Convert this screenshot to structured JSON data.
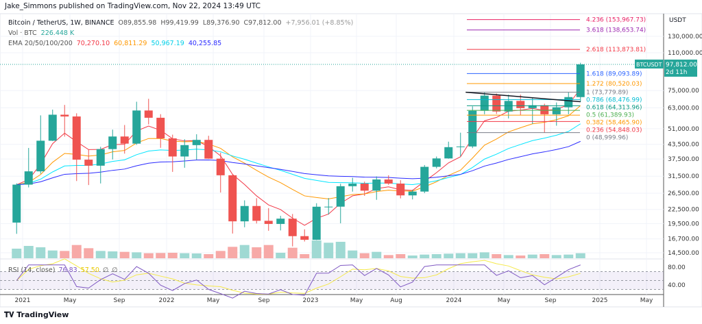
{
  "published": "Jake_Simmons published on TradingView.com, Nov 22, 2024 13:49 UTC",
  "legend": {
    "symbol": "Bitcoin / TetherUS, 1W, BINANCE",
    "open": "O89,855.98",
    "high": "H99,419.99",
    "low": "L89,376.90",
    "close": "C97,812.00",
    "change": "+7,956.01 (+8.85%)",
    "vol_label": "Vol · BTC",
    "vol_value": "226.448 K",
    "ema_label": "EMA 20/50/100/200",
    "ema_values": [
      "70,270.10",
      "60,811.29",
      "50,967.19",
      "40,255.85"
    ],
    "ema_colors": [
      "#f23645",
      "#ff9800",
      "#00e5ff",
      "#2a2aff"
    ]
  },
  "rsi": {
    "label": "RSI (14, close)",
    "value": "76.83",
    "ma_value": "57.50",
    "extra1": "∅",
    "extra2": "∅",
    "line_color": "#7e57c2",
    "ma_color": "#f5e94a"
  },
  "axis": {
    "currency": "USDT",
    "price_ticks": [
      "130,000.00",
      "110,000.00",
      "75,000.00",
      "63,000.00",
      "51,000.00",
      "43,500.00",
      "37,500.00",
      "31,500.00",
      "26,500.00",
      "22,500.00",
      "19,500.00",
      "16,700.00",
      "14,500.00"
    ],
    "rsi_ticks": [
      "80.00",
      "40.00"
    ],
    "time_ticks": [
      "2021",
      "May",
      "Sep",
      "2022",
      "May",
      "Sep",
      "2023",
      "May",
      "Aug",
      "2024",
      "May",
      "Sep",
      "2025",
      "May"
    ]
  },
  "price_tag": {
    "symbol": "BTCUSDT",
    "price": "97,812.00",
    "countdown": "2d 11h",
    "color": "#26a69a"
  },
  "fib_levels": [
    {
      "label": "4.236 (153,967.73)",
      "price": 153967.73,
      "color": "#e91e63"
    },
    {
      "label": "3.618 (138,653.74)",
      "price": 138653.74,
      "color": "#9c27b0"
    },
    {
      "label": "2.618 (113,873.81)",
      "price": 113873.81,
      "color": "#f23645"
    },
    {
      "label": "1.618 (89,093.89)",
      "price": 89093.89,
      "color": "#2962ff"
    },
    {
      "label": "1.272 (80,520.03)",
      "price": 80520.03,
      "color": "#ff9800"
    },
    {
      "label": "1 (73,779.89)",
      "price": 73779.89,
      "color": "#787b86"
    },
    {
      "label": "0.786 (68,476.99)",
      "price": 68476.99,
      "color": "#00bcd4"
    },
    {
      "label": "0.618 (64,313.96)",
      "price": 64313.96,
      "color": "#089981"
    },
    {
      "label": "0.5 (61,389.93)",
      "price": 61389.93,
      "color": "#4caf50"
    },
    {
      "label": "0.382 (58,465.90)",
      "price": 58465.9,
      "color": "#ff9800"
    },
    {
      "label": "0.236 (54,848.03)",
      "price": 54848.03,
      "color": "#f23645"
    },
    {
      "label": "0 (48,999.96)",
      "price": 48999.96,
      "color": "#787b86"
    }
  ],
  "footer": {
    "brand": "TradingView"
  },
  "chart_data": {
    "type": "candlestick",
    "title": "Bitcoin / TetherUS, 1W, BINANCE",
    "y_scale": "log",
    "ylim": [
      13500,
      160000
    ],
    "xlim": [
      "2020-11",
      "2025-06"
    ],
    "grid": true,
    "legend": "top-left",
    "up_color": "#26a69a",
    "down_color": "#ef5350",
    "months": [
      "2020-12",
      "2021-01",
      "2021-02",
      "2021-03",
      "2021-04",
      "2021-05",
      "2021-06",
      "2021-07",
      "2021-08",
      "2021-09",
      "2021-10",
      "2021-11",
      "2021-12",
      "2022-01",
      "2022-02",
      "2022-03",
      "2022-04",
      "2022-05",
      "2022-06",
      "2022-07",
      "2022-08",
      "2022-09",
      "2022-10",
      "2022-11",
      "2022-12",
      "2023-01",
      "2023-02",
      "2023-03",
      "2023-04",
      "2023-05",
      "2023-06",
      "2023-07",
      "2023-08",
      "2023-09",
      "2023-10",
      "2023-11",
      "2023-12",
      "2024-01",
      "2024-02",
      "2024-03",
      "2024-04",
      "2024-05",
      "2024-06",
      "2024-07",
      "2024-08",
      "2024-09",
      "2024-10",
      "2024-11"
    ],
    "ohlc": [
      [
        19695,
        29300,
        17572,
        28923
      ],
      [
        28923,
        41950,
        28130,
        33092
      ],
      [
        33092,
        58352,
        32296,
        45135
      ],
      [
        45134,
        61844,
        45000,
        58740
      ],
      [
        58739,
        64854,
        47044,
        57694
      ],
      [
        57697,
        59592,
        30000,
        37253
      ],
      [
        37254,
        41330,
        28805,
        35045
      ],
      [
        35046,
        42448,
        29278,
        41462
      ],
      [
        41461,
        50500,
        37332,
        47100
      ],
      [
        47100,
        52920,
        39600,
        43824
      ],
      [
        43820,
        67000,
        43283,
        61300
      ],
      [
        61300,
        69000,
        53256,
        56950
      ],
      [
        56951,
        59053,
        42000,
        46216
      ],
      [
        46216,
        47990,
        32917,
        38466
      ],
      [
        38466,
        45821,
        34322,
        43160
      ],
      [
        43160,
        48190,
        37155,
        45510
      ],
      [
        45510,
        47444,
        37578,
        37630
      ],
      [
        37630,
        40023,
        26700,
        31801
      ],
      [
        31801,
        31986,
        17622,
        19942
      ],
      [
        19942,
        24668,
        18781,
        23293
      ],
      [
        23296,
        25211,
        19520,
        20050
      ],
      [
        20048,
        22799,
        18125,
        19423
      ],
      [
        19423,
        21085,
        18190,
        20490
      ],
      [
        20490,
        21480,
        15476,
        17164
      ],
      [
        17165,
        18387,
        16256,
        16542
      ],
      [
        16541,
        23960,
        16499,
        23125
      ],
      [
        23125,
        25250,
        21351,
        23141
      ],
      [
        23141,
        29184,
        19549,
        28465
      ],
      [
        28465,
        31000,
        26942,
        29233
      ],
      [
        29233,
        29820,
        25811,
        27210
      ],
      [
        27210,
        31431,
        24800,
        30472
      ],
      [
        30471,
        31804,
        28861,
        29232
      ],
      [
        29232,
        30244,
        25166,
        25941
      ],
      [
        25941,
        27483,
        24901,
        26962
      ],
      [
        26962,
        35280,
        26538,
        34639
      ],
      [
        34640,
        38450,
        34097,
        37723
      ],
      [
        37723,
        44700,
        37615,
        42283
      ],
      [
        42284,
        48969,
        38555,
        42580
      ],
      [
        42580,
        63913,
        41884,
        61130
      ],
      [
        61130,
        73777,
        59005,
        71280
      ],
      [
        71280,
        72797,
        59191,
        60672
      ],
      [
        60672,
        71979,
        56552,
        67540
      ],
      [
        67540,
        71997,
        58402,
        62772
      ],
      [
        62772,
        70079,
        53485,
        64628
      ],
      [
        64628,
        65659,
        49000,
        58974
      ],
      [
        58974,
        66498,
        52550,
        63328
      ],
      [
        63328,
        73620,
        58946,
        70215
      ],
      [
        70215,
        99419,
        66835,
        97812
      ]
    ],
    "volume_k": [
      2100,
      2700,
      2400,
      1700,
      1600,
      2900,
      2200,
      1600,
      1500,
      1400,
      1300,
      1100,
      1150,
      1200,
      1100,
      1050,
      900,
      1600,
      2500,
      2900,
      2400,
      2900,
      1200,
      2300,
      900,
      3900,
      3400,
      3600,
      1700,
      1100,
      1400,
      700,
      900,
      600,
      800,
      900,
      1000,
      1100,
      1100,
      1300,
      900,
      700,
      600,
      800,
      900,
      700,
      800,
      1100
    ],
    "ema_periods": [
      20,
      50,
      100,
      200
    ],
    "trendline": {
      "from": [
        "2024-02",
        73779.89
      ],
      "to": [
        "2024-11",
        67000
      ]
    }
  }
}
